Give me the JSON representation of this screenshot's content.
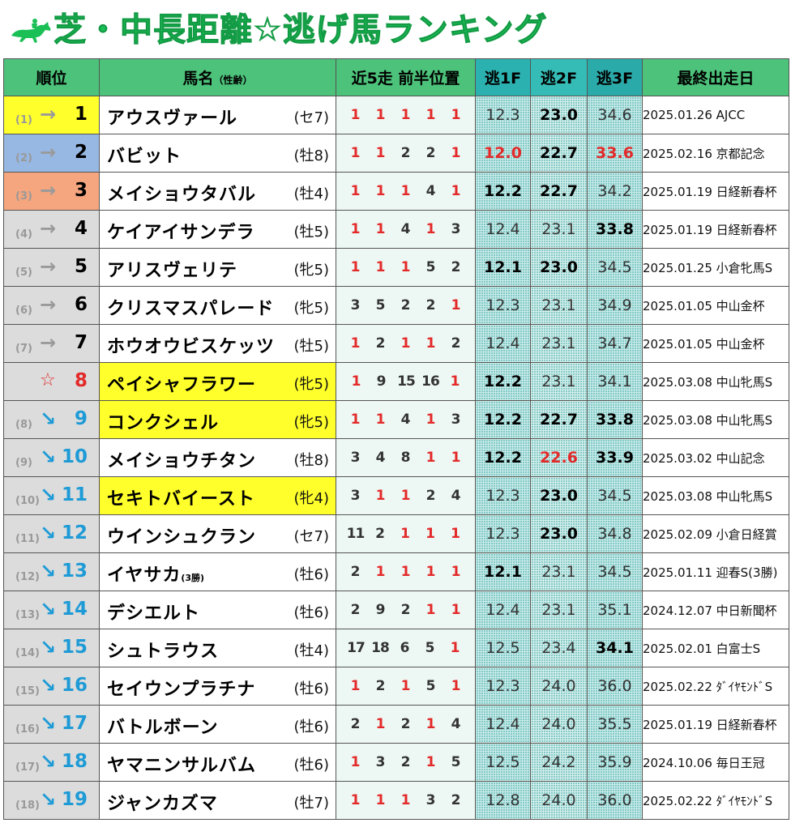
{
  "title": "芝・中長距離☆逃げ馬ランキング",
  "headers": {
    "rank": "順位",
    "horse": "馬名",
    "horse_sub": "（性齢）",
    "positions": "近5走 前半位置",
    "f1": "逃1F",
    "f2": "逃2F",
    "f3": "逃3F",
    "last_race": "最終出走日"
  },
  "icon": "horse-jockey-icon",
  "colors": {
    "title": "#1abf56",
    "header": "#4cc27a",
    "highlight": "#ffff2b",
    "down": "#1e9bd6",
    "red": "#e32a2a"
  },
  "rows": [
    {
      "prev": "(1)",
      "arrow": "→",
      "rank": "1",
      "trend": "same",
      "medal": "gold",
      "name": "アウスヴァール",
      "suffix": "",
      "sexage": "(セ7)",
      "hl": false,
      "pos": [
        "1",
        "1",
        "1",
        "1",
        "1"
      ],
      "f1": "12.3",
      "f2": "23.0",
      "f3": "34.6",
      "f1s": "",
      "f2s": "bold",
      "f3s": "",
      "last": "2025.01.26 AJCC"
    },
    {
      "prev": "(2)",
      "arrow": "→",
      "rank": "2",
      "trend": "same",
      "medal": "silver",
      "name": "バビット",
      "suffix": "",
      "sexage": "(牡8)",
      "hl": false,
      "pos": [
        "1",
        "1",
        "2",
        "2",
        "1"
      ],
      "f1": "12.0",
      "f2": "22.7",
      "f3": "33.6",
      "f1s": "red",
      "f2s": "bold",
      "f3s": "red",
      "last": "2025.02.16 京都記念"
    },
    {
      "prev": "(3)",
      "arrow": "→",
      "rank": "3",
      "trend": "same",
      "medal": "bronze",
      "name": "メイショウタバル",
      "suffix": "",
      "sexage": "(牡4)",
      "hl": false,
      "pos": [
        "1",
        "1",
        "1",
        "4",
        "1"
      ],
      "f1": "12.2",
      "f2": "22.7",
      "f3": "34.2",
      "f1s": "bold",
      "f2s": "bold",
      "f3s": "",
      "last": "2025.01.19 日経新春杯"
    },
    {
      "prev": "(4)",
      "arrow": "→",
      "rank": "4",
      "trend": "same",
      "medal": "",
      "name": "ケイアイサンデラ",
      "suffix": "",
      "sexage": "(牡5)",
      "hl": false,
      "pos": [
        "1",
        "1",
        "4",
        "1",
        "3"
      ],
      "f1": "12.4",
      "f2": "23.1",
      "f3": "33.8",
      "f1s": "",
      "f2s": "",
      "f3s": "bold",
      "last": "2025.01.19 日経新春杯"
    },
    {
      "prev": "(5)",
      "arrow": "→",
      "rank": "5",
      "trend": "same",
      "medal": "",
      "name": "アリスヴェリテ",
      "suffix": "",
      "sexage": "(牝5)",
      "hl": false,
      "pos": [
        "1",
        "1",
        "1",
        "5",
        "2"
      ],
      "f1": "12.1",
      "f2": "23.0",
      "f3": "34.5",
      "f1s": "bold",
      "f2s": "bold",
      "f3s": "",
      "last": "2025.01.25 小倉牝馬S"
    },
    {
      "prev": "(6)",
      "arrow": "→",
      "rank": "6",
      "trend": "same",
      "medal": "",
      "name": "クリスマスパレード",
      "suffix": "",
      "sexage": "(牝5)",
      "hl": false,
      "pos": [
        "3",
        "5",
        "2",
        "2",
        "1"
      ],
      "f1": "12.3",
      "f2": "23.1",
      "f3": "34.9",
      "f1s": "",
      "f2s": "",
      "f3s": "",
      "last": "2025.01.05 中山金杯"
    },
    {
      "prev": "(7)",
      "arrow": "→",
      "rank": "7",
      "trend": "same",
      "medal": "",
      "name": "ホウオウビスケッツ",
      "suffix": "",
      "sexage": "(牡5)",
      "hl": false,
      "pos": [
        "1",
        "2",
        "1",
        "1",
        "2"
      ],
      "f1": "12.4",
      "f2": "23.1",
      "f3": "34.7",
      "f1s": "",
      "f2s": "",
      "f3s": "",
      "last": "2025.01.05 中山金杯"
    },
    {
      "prev": "",
      "arrow": "☆",
      "rank": "8",
      "trend": "new",
      "medal": "",
      "name": "ペイシャフラワー",
      "suffix": "",
      "sexage": "(牝5)",
      "hl": true,
      "pos": [
        "1",
        "9",
        "15",
        "16",
        "1"
      ],
      "f1": "12.2",
      "f2": "23.1",
      "f3": "34.1",
      "f1s": "bold",
      "f2s": "",
      "f3s": "",
      "last": "2025.03.08 中山牝馬S"
    },
    {
      "prev": "(8)",
      "arrow": "↘",
      "rank": "9",
      "trend": "down",
      "medal": "",
      "name": "コンクシェル",
      "suffix": "",
      "sexage": "(牝5)",
      "hl": true,
      "pos": [
        "1",
        "1",
        "4",
        "1",
        "3"
      ],
      "f1": "12.2",
      "f2": "22.7",
      "f3": "33.8",
      "f1s": "bold",
      "f2s": "bold",
      "f3s": "bold",
      "last": "2025.03.08 中山牝馬S"
    },
    {
      "prev": "(9)",
      "arrow": "↘",
      "rank": "10",
      "trend": "down",
      "medal": "",
      "name": "メイショウチタン",
      "suffix": "",
      "sexage": "(牡8)",
      "hl": false,
      "pos": [
        "3",
        "4",
        "8",
        "1",
        "1"
      ],
      "f1": "12.2",
      "f2": "22.6",
      "f3": "33.9",
      "f1s": "bold",
      "f2s": "red",
      "f3s": "bold",
      "last": "2025.03.02 中山記念"
    },
    {
      "prev": "(10)",
      "arrow": "↘",
      "rank": "11",
      "trend": "down",
      "medal": "",
      "name": "セキトバイースト",
      "suffix": "",
      "sexage": "(牝4)",
      "hl": true,
      "pos": [
        "3",
        "1",
        "1",
        "2",
        "4"
      ],
      "f1": "12.3",
      "f2": "23.0",
      "f3": "34.5",
      "f1s": "",
      "f2s": "bold",
      "f3s": "",
      "last": "2025.03.08 中山牝馬S"
    },
    {
      "prev": "(11)",
      "arrow": "↘",
      "rank": "12",
      "trend": "down",
      "medal": "",
      "name": "ウインシュクラン",
      "suffix": "",
      "sexage": "(セ7)",
      "hl": false,
      "pos": [
        "11",
        "2",
        "1",
        "1",
        "1"
      ],
      "f1": "12.3",
      "f2": "23.0",
      "f3": "34.8",
      "f1s": "",
      "f2s": "bold",
      "f3s": "",
      "last": "2025.02.09 小倉日経賞"
    },
    {
      "prev": "(12)",
      "arrow": "↘",
      "rank": "13",
      "trend": "down",
      "medal": "",
      "name": "イヤサカ",
      "suffix": "(3勝)",
      "sexage": "(牡6)",
      "hl": false,
      "pos": [
        "2",
        "1",
        "1",
        "1",
        "1"
      ],
      "f1": "12.1",
      "f2": "23.1",
      "f3": "34.5",
      "f1s": "bold",
      "f2s": "",
      "f3s": "",
      "last": "2025.01.11 迎春S(3勝)"
    },
    {
      "prev": "(13)",
      "arrow": "↘",
      "rank": "14",
      "trend": "down",
      "medal": "",
      "name": "デシエルト",
      "suffix": "",
      "sexage": "(牡6)",
      "hl": false,
      "pos": [
        "2",
        "9",
        "2",
        "1",
        "1"
      ],
      "f1": "12.4",
      "f2": "23.1",
      "f3": "35.1",
      "f1s": "",
      "f2s": "",
      "f3s": "",
      "last": "2024.12.07 中日新聞杯"
    },
    {
      "prev": "(14)",
      "arrow": "↘",
      "rank": "15",
      "trend": "down",
      "medal": "",
      "name": "シュトラウス",
      "suffix": "",
      "sexage": "(牡4)",
      "hl": false,
      "pos": [
        "17",
        "18",
        "6",
        "5",
        "1"
      ],
      "f1": "12.5",
      "f2": "23.4",
      "f3": "34.1",
      "f1s": "",
      "f2s": "",
      "f3s": "bold",
      "last": "2025.02.01 白富士S"
    },
    {
      "prev": "(15)",
      "arrow": "↘",
      "rank": "16",
      "trend": "down",
      "medal": "",
      "name": "セイウンプラチナ",
      "suffix": "",
      "sexage": "(牡6)",
      "hl": false,
      "pos": [
        "1",
        "2",
        "1",
        "5",
        "1"
      ],
      "f1": "12.3",
      "f2": "24.0",
      "f3": "36.0",
      "f1s": "",
      "f2s": "",
      "f3s": "",
      "last": "2025.02.22 ﾀﾞｲﾔﾓﾝﾄﾞS"
    },
    {
      "prev": "(16)",
      "arrow": "↘",
      "rank": "17",
      "trend": "down",
      "medal": "",
      "name": "バトルボーン",
      "suffix": "",
      "sexage": "(牡6)",
      "hl": false,
      "pos": [
        "2",
        "1",
        "2",
        "1",
        "4"
      ],
      "f1": "12.4",
      "f2": "24.0",
      "f3": "35.5",
      "f1s": "",
      "f2s": "",
      "f3s": "",
      "last": "2025.01.19 日経新春杯"
    },
    {
      "prev": "(17)",
      "arrow": "↘",
      "rank": "18",
      "trend": "down",
      "medal": "",
      "name": "ヤマニンサルバム",
      "suffix": "",
      "sexage": "(牡6)",
      "hl": false,
      "pos": [
        "1",
        "3",
        "2",
        "1",
        "5"
      ],
      "f1": "12.5",
      "f2": "24.2",
      "f3": "35.9",
      "f1s": "",
      "f2s": "",
      "f3s": "",
      "last": "2024.10.06 毎日王冠"
    },
    {
      "prev": "(18)",
      "arrow": "↘",
      "rank": "19",
      "trend": "down",
      "medal": "",
      "name": "ジャンカズマ",
      "suffix": "",
      "sexage": "(牡7)",
      "hl": false,
      "pos": [
        "1",
        "1",
        "1",
        "3",
        "2"
      ],
      "f1": "12.8",
      "f2": "24.0",
      "f3": "36.0",
      "f1s": "",
      "f2s": "",
      "f3s": "",
      "last": "2025.02.22 ﾀﾞｲﾔﾓﾝﾄﾞS"
    }
  ]
}
